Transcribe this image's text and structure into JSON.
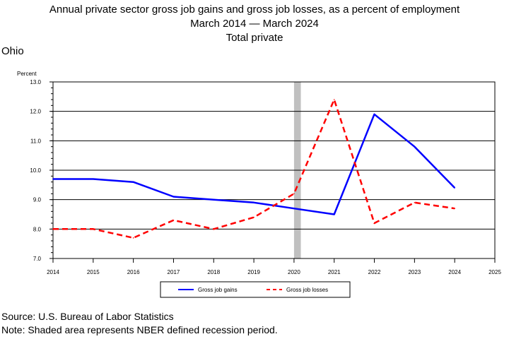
{
  "header": {
    "title_line1": "Annual private sector gross job gains and gross job losses, as a percent of employment",
    "title_line2": "March 2014 — March 2024",
    "title_line3": "Total private",
    "region": "Ohio"
  },
  "footer": {
    "source": "Source: U.S. Bureau of Labor Statistics",
    "note": "Note: Shaded area represents NBER defined recession period."
  },
  "chart_data": {
    "type": "line",
    "ylabel": "Percent",
    "xlabel": "",
    "ylim": [
      7.0,
      13.0
    ],
    "xlim": [
      2014,
      2025
    ],
    "yticks": [
      "7.0",
      "8.0",
      "9.0",
      "10.0",
      "11.0",
      "12.0",
      "13.0"
    ],
    "xticks": [
      "2014",
      "2015",
      "2016",
      "2017",
      "2018",
      "2019",
      "2020",
      "2021",
      "2022",
      "2023",
      "2024",
      "2025"
    ],
    "recession": [
      2020.0,
      2020.17
    ],
    "recession_color": "#c0c0c0",
    "grid": "horizontal",
    "legend_position": "bottom",
    "x": [
      2014,
      2015,
      2016,
      2017,
      2018,
      2019,
      2020,
      2021,
      2022,
      2023,
      2024
    ],
    "series": [
      {
        "name": "Gross job gains",
        "color": "#0000ff",
        "dash": "solid",
        "values": [
          9.7,
          9.7,
          9.6,
          9.1,
          9.0,
          8.9,
          8.7,
          8.5,
          11.9,
          10.8,
          9.4
        ]
      },
      {
        "name": "Gross job losses",
        "color": "#ff0000",
        "dash": "dashed",
        "values": [
          8.0,
          8.0,
          7.7,
          8.3,
          8.0,
          8.4,
          9.2,
          12.4,
          8.2,
          8.9,
          8.7
        ]
      }
    ]
  }
}
